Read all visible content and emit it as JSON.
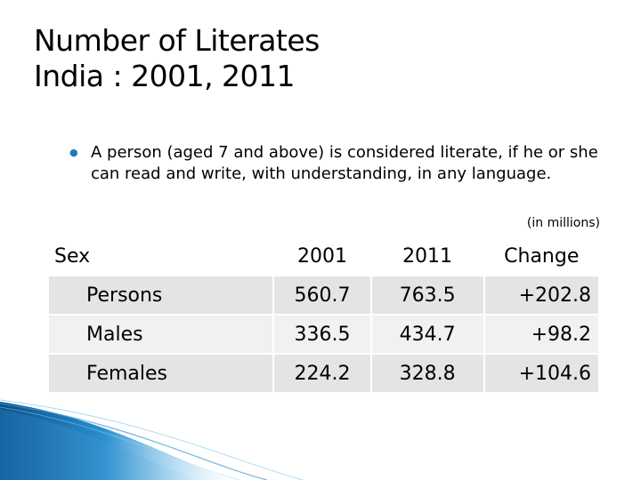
{
  "title": {
    "line1": "Number of Literates",
    "line2": "India : 2001, 2011"
  },
  "bullet": {
    "text": "A person (aged 7 and above) is considered literate, if he or she can read and write, with  understanding, in any language."
  },
  "units_note": "(in millions)",
  "table": {
    "headers": [
      "Sex",
      "2001",
      "2011",
      "Change"
    ],
    "rows": [
      {
        "sex": "Persons",
        "y2001": "560.7",
        "y2011": "763.5",
        "change": "+202.8"
      },
      {
        "sex": "Males",
        "y2001": "336.5",
        "y2011": "434.7",
        "change": "+98.2"
      },
      {
        "sex": "Females",
        "y2001": "224.2",
        "y2011": "328.8",
        "change": "+104.6"
      }
    ]
  },
  "colors": {
    "accent_blue": "#1f7bb6",
    "row_shade_dark": "#e4e4e4",
    "row_shade_light": "#f1f1f1"
  }
}
